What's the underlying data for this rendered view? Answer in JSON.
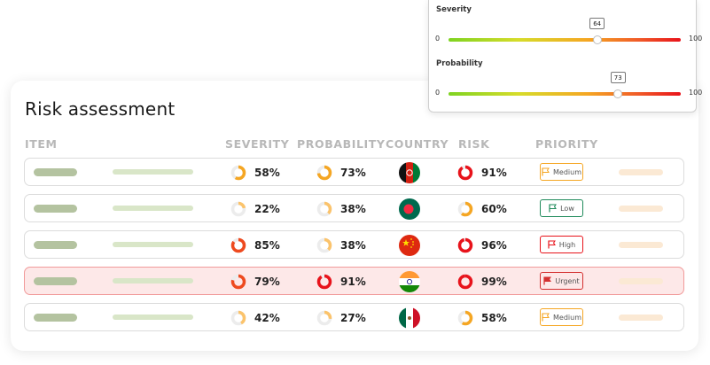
{
  "title": "Risk assessment",
  "columns": {
    "item": "ITEM",
    "severity": "SEVERITY",
    "probability": "PROBABILITY",
    "country": "COUNTRY",
    "risk": "RISK",
    "priority": "PRIORITY"
  },
  "rows": [
    {
      "severity": "58%",
      "severity_value": 58,
      "probability": "73%",
      "probability_value": 73,
      "country_flag": "afghanistan-flag-icon",
      "risk": "91%",
      "risk_value": 91,
      "priority": "Medium",
      "priority_color": "#f5a623"
    },
    {
      "severity": "22%",
      "severity_value": 22,
      "probability": "38%",
      "probability_value": 38,
      "country_flag": "bangladesh-flag-icon",
      "risk": "60%",
      "risk_value": 60,
      "priority": "Low",
      "priority_color": "#1e8a5a"
    },
    {
      "severity": "85%",
      "severity_value": 85,
      "probability": "38%",
      "probability_value": 38,
      "country_flag": "china-flag-icon",
      "risk": "96%",
      "risk_value": 96,
      "priority": "High",
      "priority_color": "#e8131b"
    },
    {
      "severity": "79%",
      "severity_value": 79,
      "probability": "91%",
      "probability_value": 91,
      "country_flag": "india-flag-icon",
      "risk": "99%",
      "risk_value": 99,
      "priority": "Urgent",
      "priority_color": "#d32f2f"
    },
    {
      "severity": "42%",
      "severity_value": 42,
      "probability": "27%",
      "probability_value": 27,
      "country_flag": "mexico-flag-icon",
      "risk": "58%",
      "risk_value": 58,
      "priority": "Medium",
      "priority_color": "#f5a623"
    }
  ],
  "sliders": [
    {
      "label": "Severity",
      "min": "0",
      "max": "100",
      "value": "64",
      "fraction": 0.64
    },
    {
      "label": "Probability",
      "min": "0",
      "max": "100",
      "value": "73",
      "fraction": 0.73
    }
  ],
  "colors": {
    "ring_low": "#fbc36b",
    "ring_mid": "#f5a623",
    "ring_high": "#ee4a1f",
    "ring_max": "#e8131b",
    "ring_track": "#ececec"
  }
}
